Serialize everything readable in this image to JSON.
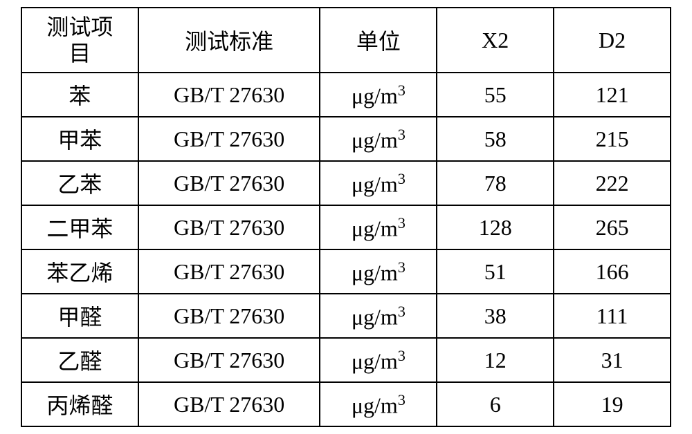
{
  "table": {
    "type": "table",
    "background_color": "#ffffff",
    "border_color": "#000000",
    "border_width": 2,
    "text_color": "#000000",
    "cell_fontsize": 32,
    "font_family": "serif",
    "columns": [
      {
        "key": "item",
        "label": "测试项\n目",
        "width_pct": 18,
        "align": "center"
      },
      {
        "key": "standard",
        "label": "测试标准",
        "width_pct": 28,
        "align": "center"
      },
      {
        "key": "unit",
        "label": "单位",
        "width_pct": 18,
        "align": "center"
      },
      {
        "key": "x2",
        "label": "X2",
        "width_pct": 18,
        "align": "center"
      },
      {
        "key": "d2",
        "label": "D2",
        "width_pct": 18,
        "align": "center"
      }
    ],
    "unit_value": "μg/m³",
    "rows": [
      {
        "item": "苯",
        "standard": "GB/T 27630",
        "unit": "μg/m³",
        "x2": "55",
        "d2": "121"
      },
      {
        "item": "甲苯",
        "standard": "GB/T 27630",
        "unit": "μg/m³",
        "x2": "58",
        "d2": "215"
      },
      {
        "item": "乙苯",
        "standard": "GB/T 27630",
        "unit": "μg/m³",
        "x2": "78",
        "d2": "222"
      },
      {
        "item": "二甲苯",
        "standard": "GB/T 27630",
        "unit": "μg/m³",
        "x2": "128",
        "d2": "265"
      },
      {
        "item": "苯乙烯",
        "standard": "GB/T 27630",
        "unit": "μg/m³",
        "x2": "51",
        "d2": "166"
      },
      {
        "item": "甲醛",
        "standard": "GB/T 27630",
        "unit": "μg/m³",
        "x2": "38",
        "d2": "111"
      },
      {
        "item": "乙醛",
        "standard": "GB/T 27630",
        "unit": "μg/m³",
        "x2": "12",
        "d2": "31"
      },
      {
        "item": "丙烯醛",
        "standard": "GB/T 27630",
        "unit": "μg/m³",
        "x2": "6",
        "d2": "19"
      }
    ]
  }
}
